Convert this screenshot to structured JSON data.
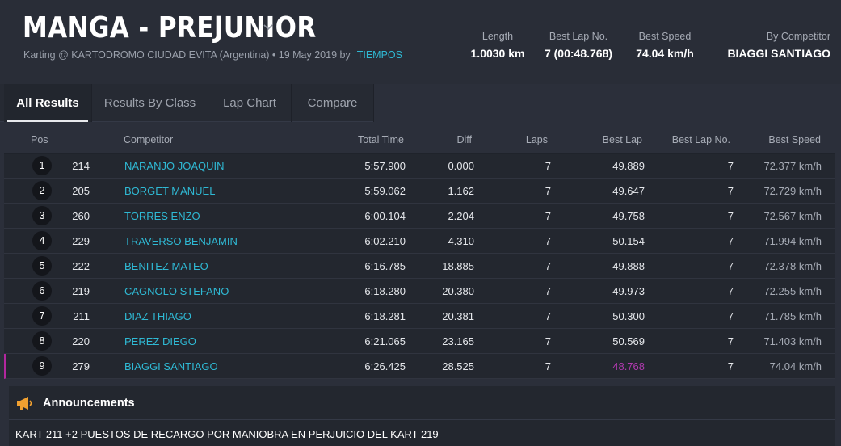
{
  "event": {
    "title": "MANGA - PREJUNIOR",
    "subtitle": "Karting @ KARTODROMO CIUDAD EVITA (Argentina) • 19 May 2019 by",
    "by_link": "TIEMPOS"
  },
  "stats": {
    "length": {
      "label": "Length",
      "value": "1.0030 km"
    },
    "best_lap_no": {
      "label": "Best Lap No.",
      "value": "7 (00:48.768)"
    },
    "best_speed": {
      "label": "Best Speed",
      "value": "74.04 km/h"
    },
    "by_competitor": {
      "label": "By Competitor",
      "value": "BIAGGI SANTIAGO"
    }
  },
  "tabs": [
    "All Results",
    "Results By Class",
    "Lap Chart",
    "Compare"
  ],
  "active_tab": "All Results",
  "columns": {
    "pos": "Pos",
    "competitor": "Competitor",
    "total_time": "Total Time",
    "diff": "Diff",
    "laps": "Laps",
    "best_lap": "Best Lap",
    "best_lap_no": "Best Lap No.",
    "best_speed": "Best Speed"
  },
  "rows": [
    {
      "pos": "1",
      "no": "214",
      "competitor": "NARANJO JOAQUIN",
      "total_time": "5:57.900",
      "diff": "0.000",
      "laps": "7",
      "best_lap": "49.889",
      "best_lap_no": "7",
      "best_speed": "72.377 km/h"
    },
    {
      "pos": "2",
      "no": "205",
      "competitor": "BORGET MANUEL",
      "total_time": "5:59.062",
      "diff": "1.162",
      "laps": "7",
      "best_lap": "49.647",
      "best_lap_no": "7",
      "best_speed": "72.729 km/h"
    },
    {
      "pos": "3",
      "no": "260",
      "competitor": "TORRES ENZO",
      "total_time": "6:00.104",
      "diff": "2.204",
      "laps": "7",
      "best_lap": "49.758",
      "best_lap_no": "7",
      "best_speed": "72.567 km/h"
    },
    {
      "pos": "4",
      "no": "229",
      "competitor": "TRAVERSO BENJAMIN",
      "total_time": "6:02.210",
      "diff": "4.310",
      "laps": "7",
      "best_lap": "50.154",
      "best_lap_no": "7",
      "best_speed": "71.994 km/h"
    },
    {
      "pos": "5",
      "no": "222",
      "competitor": "BENITEZ MATEO",
      "total_time": "6:16.785",
      "diff": "18.885",
      "laps": "7",
      "best_lap": "49.888",
      "best_lap_no": "7",
      "best_speed": "72.378 km/h"
    },
    {
      "pos": "6",
      "no": "219",
      "competitor": "CAGNOLO STEFANO",
      "total_time": "6:18.280",
      "diff": "20.380",
      "laps": "7",
      "best_lap": "49.973",
      "best_lap_no": "7",
      "best_speed": "72.255 km/h"
    },
    {
      "pos": "7",
      "no": "211",
      "competitor": "DIAZ THIAGO",
      "total_time": "6:18.281",
      "diff": "20.381",
      "laps": "7",
      "best_lap": "50.300",
      "best_lap_no": "7",
      "best_speed": "71.785 km/h"
    },
    {
      "pos": "8",
      "no": "220",
      "competitor": "PEREZ DIEGO",
      "total_time": "6:21.065",
      "diff": "23.165",
      "laps": "7",
      "best_lap": "50.569",
      "best_lap_no": "7",
      "best_speed": "71.403 km/h"
    },
    {
      "pos": "9",
      "no": "279",
      "competitor": "BIAGGI SANTIAGO",
      "total_time": "6:26.425",
      "diff": "28.525",
      "laps": "7",
      "best_lap": "48.768",
      "best_lap_no": "7",
      "best_speed": "74.04 km/h"
    }
  ],
  "highlight_row": 8,
  "colors": {
    "accent": "#2fb9d4",
    "best_lap_highlight": "#b13ab0",
    "announce_icon": "#f0a030"
  },
  "announcements": {
    "title": "Announcements",
    "icon": "megaphone-icon",
    "text": "KART 211 +2 PUESTOS DE RECARGO POR MANIOBRA EN PERJUICIO DEL KART 219"
  }
}
